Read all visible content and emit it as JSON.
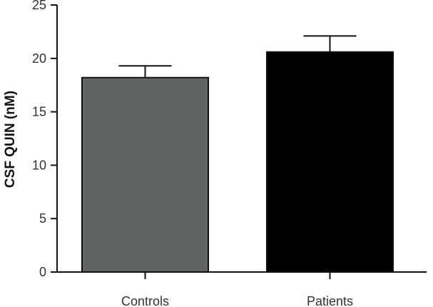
{
  "chart_data": {
    "type": "bar",
    "title": "",
    "xlabel": "",
    "ylabel": "CSF QUIN (nM)",
    "ylim": [
      0,
      25
    ],
    "yticks": [
      "0",
      "5",
      "10",
      "15",
      "20",
      "25"
    ],
    "categories": [
      "Controls",
      "Patients"
    ],
    "values": [
      18.2,
      20.6
    ],
    "errors": [
      1.1,
      1.5
    ],
    "colors": [
      "#606563",
      "#000000"
    ],
    "grid": false,
    "legend": "none"
  }
}
